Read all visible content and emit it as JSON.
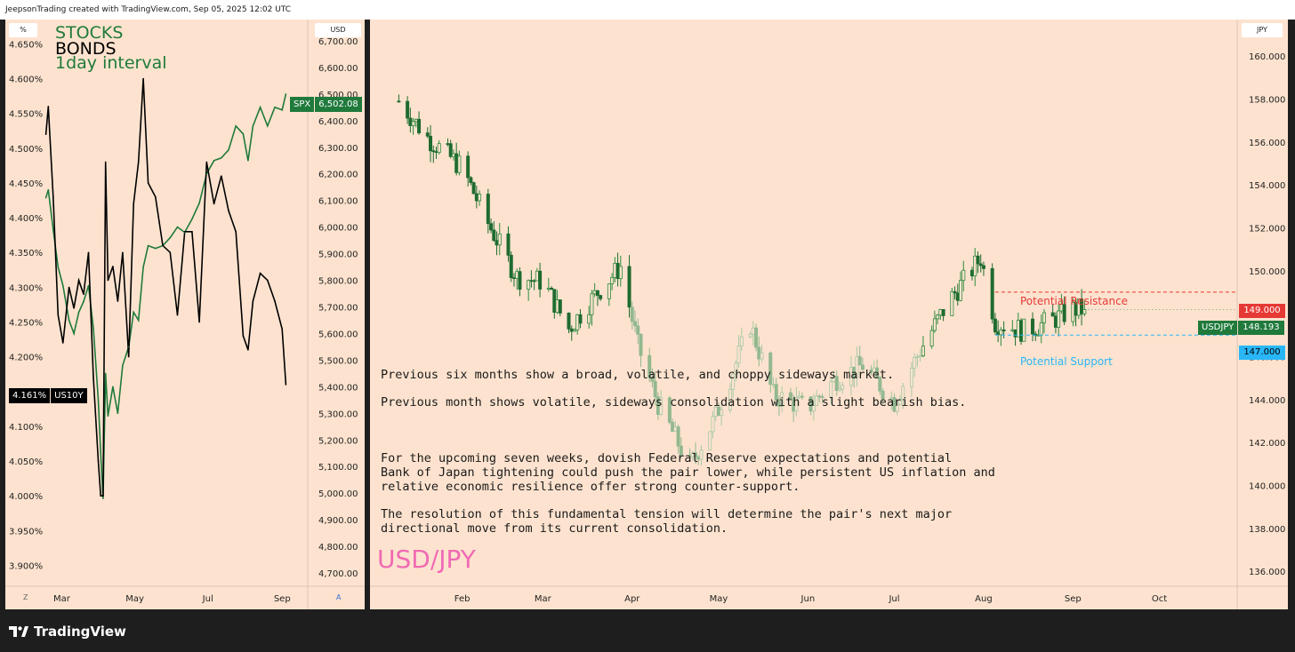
{
  "header": {
    "caption": "JeepsonTrading created with TradingView.com, Sep 05, 2025 12:02 UTC"
  },
  "footer": {
    "brand": "TradingView"
  },
  "left_panel": {
    "left_unit": "%",
    "right_unit": "USD",
    "legend": {
      "line1": "STOCKS",
      "line2": "BONDS",
      "line3": "1day interval"
    },
    "left_scale_button": "Z",
    "right_scale_button": "A",
    "spx_tag": {
      "symbol": "SPX",
      "value": "6,502.08"
    },
    "us10y_tag": {
      "value": "4.161%",
      "symbol": "US10Y"
    },
    "colors": {
      "stocks": "#1f7a3c",
      "bonds": "#000000",
      "background": "#fde3cf"
    }
  },
  "right_panel": {
    "unit": "JPY",
    "title": "USD/JPY",
    "commentary": [
      "Previous six months show a broad, volatile, and choppy sideways market.",
      "Previous month shows volatile, sideways consolidation with a slight bearish bias.",
      "For the upcoming seven weeks, dovish Federal Reserve expectations and potential\nBank of Japan tightening could push the pair lower, while persistent US inflation and\nrelative economic resilience offer strong counter-support.",
      "The resolution of this fundamental tension will determine the pair's next major\ndirectional move from its current consolidation."
    ],
    "resistance": {
      "label": "Potential Resistance",
      "value": "149.000",
      "color": "#e53935"
    },
    "support": {
      "label": "Potential Support",
      "value": "147.000",
      "color": "#29b6f6"
    },
    "last_price": {
      "symbol": "USDJPY",
      "value": "148.193",
      "color": "#1f7a3c"
    },
    "title_color": "#f06ab3"
  },
  "chart_data": [
    {
      "type": "line",
      "title": "STOCKS BONDS",
      "subtitle": "1day interval",
      "x_ticks": [
        "Mar",
        "May",
        "Jul",
        "Sep"
      ],
      "left_axis": {
        "unit": "%",
        "ticks": [
          "4.650%",
          "4.600%",
          "4.550%",
          "4.500%",
          "4.450%",
          "4.400%",
          "4.350%",
          "4.300%",
          "4.250%",
          "4.200%",
          "4.150%",
          "4.100%",
          "4.050%",
          "4.000%",
          "3.950%",
          "3.900%"
        ],
        "ylim": [
          3.87,
          4.685
        ]
      },
      "right_axis": {
        "unit": "USD",
        "ticks": [
          "6,700.00",
          "6,600.00",
          "6,500.00",
          "6,400.00",
          "6,300.00",
          "6,200.00",
          "6,100.00",
          "6,000.00",
          "5,900.00",
          "5,800.00",
          "5,700.00",
          "5,600.00",
          "5,500.00",
          "5,400.00",
          "5,300.00",
          "5,200.00",
          "5,100.00",
          "5,000.00",
          "4,900.00",
          "4,800.00",
          "4,700.00"
        ],
        "ylim": [
          4650,
          6780
        ]
      },
      "x": [
        "2025-02-19",
        "2025-02-21",
        "2025-02-25",
        "2025-03-01",
        "2025-03-05",
        "2025-03-10",
        "2025-03-14",
        "2025-03-18",
        "2025-03-22",
        "2025-03-26",
        "2025-03-30",
        "2025-04-03",
        "2025-04-05",
        "2025-04-07",
        "2025-04-09",
        "2025-04-11",
        "2025-04-15",
        "2025-04-19",
        "2025-04-23",
        "2025-04-28",
        "2025-05-02",
        "2025-05-06",
        "2025-05-10",
        "2025-05-14",
        "2025-05-20",
        "2025-05-26",
        "2025-06-01",
        "2025-06-07",
        "2025-06-13",
        "2025-06-19",
        "2025-06-25",
        "2025-07-01",
        "2025-07-07",
        "2025-07-13",
        "2025-07-19",
        "2025-07-25",
        "2025-07-31",
        "2025-08-04",
        "2025-08-08",
        "2025-08-14",
        "2025-08-20",
        "2025-08-26",
        "2025-09-01",
        "2025-09-04"
      ],
      "series": [
        {
          "name": "SPX",
          "axis": "right",
          "values": [
            6110,
            6140,
            5990,
            5850,
            5780,
            5650,
            5600,
            5680,
            5720,
            5780,
            5620,
            5350,
            5150,
            4980,
            5450,
            5290,
            5400,
            5300,
            5480,
            5550,
            5680,
            5650,
            5850,
            5930,
            5920,
            5930,
            5960,
            6000,
            5980,
            6030,
            6090,
            6200,
            6250,
            6260,
            6290,
            6380,
            6350,
            6250,
            6380,
            6450,
            6380,
            6450,
            6440,
            6500
          ]
        },
        {
          "name": "US10Y",
          "axis": "left",
          "values": [
            4.52,
            4.56,
            4.43,
            4.26,
            4.22,
            4.3,
            4.27,
            4.31,
            4.29,
            4.35,
            4.17,
            4.05,
            4.0,
            4.0,
            4.48,
            4.31,
            4.33,
            4.28,
            4.35,
            4.2,
            4.42,
            4.48,
            4.6,
            4.45,
            4.43,
            4.36,
            4.35,
            4.26,
            4.38,
            4.38,
            4.25,
            4.48,
            4.42,
            4.46,
            4.41,
            4.38,
            4.23,
            4.21,
            4.28,
            4.32,
            4.31,
            4.28,
            4.24,
            4.16
          ]
        }
      ]
    },
    {
      "type": "candlestick",
      "title": "USD/JPY",
      "x_ticks": [
        "Feb",
        "Mar",
        "Apr",
        "May",
        "Jun",
        "Jul",
        "Aug",
        "Sep",
        "Oct"
      ],
      "y_ticks": [
        "160.000",
        "158.000",
        "156.000",
        "154.000",
        "152.000",
        "150.000",
        "148.000",
        "146.000",
        "144.000",
        "142.000",
        "140.000",
        "138.000",
        "136.000"
      ],
      "ylim": [
        135.3,
        161.7
      ],
      "anchor_closes": [
        {
          "date": "2025-01-10",
          "close": 157.9
        },
        {
          "date": "2025-01-20",
          "close": 156.2
        },
        {
          "date": "2025-02-01",
          "close": 154.8
        },
        {
          "date": "2025-02-10",
          "close": 152.2
        },
        {
          "date": "2025-02-20",
          "close": 149.7
        },
        {
          "date": "2025-03-01",
          "close": 149.5
        },
        {
          "date": "2025-03-10",
          "close": 147.3
        },
        {
          "date": "2025-03-20",
          "close": 149.0
        },
        {
          "date": "2025-03-28",
          "close": 150.2
        },
        {
          "date": "2025-04-03",
          "close": 146.5
        },
        {
          "date": "2025-04-10",
          "close": 143.8
        },
        {
          "date": "2025-04-21",
          "close": 140.9
        },
        {
          "date": "2025-04-30",
          "close": 143.2
        },
        {
          "date": "2025-05-12",
          "close": 147.5
        },
        {
          "date": "2025-05-20",
          "close": 144.2
        },
        {
          "date": "2025-06-01",
          "close": 143.6
        },
        {
          "date": "2025-06-10",
          "close": 144.9
        },
        {
          "date": "2025-06-20",
          "close": 145.6
        },
        {
          "date": "2025-07-01",
          "close": 143.9
        },
        {
          "date": "2025-07-10",
          "close": 146.3
        },
        {
          "date": "2025-07-20",
          "close": 148.6
        },
        {
          "date": "2025-07-31",
          "close": 150.6
        },
        {
          "date": "2025-08-05",
          "close": 147.6
        },
        {
          "date": "2025-08-15",
          "close": 147.2
        },
        {
          "date": "2025-08-25",
          "close": 147.7
        },
        {
          "date": "2025-09-01",
          "close": 148.2
        },
        {
          "date": "2025-09-05",
          "close": 148.19
        }
      ],
      "highlight_range": [
        "2025-04-01",
        "2025-07-10"
      ],
      "levels": [
        {
          "name": "Potential Resistance",
          "value": 149.0
        },
        {
          "name": "Potential Support",
          "value": 147.0
        }
      ],
      "last": 148.193
    }
  ]
}
